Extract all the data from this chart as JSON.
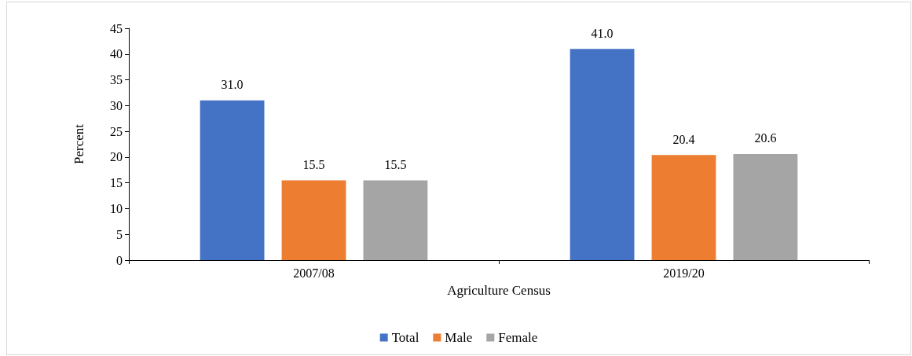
{
  "chart_data": {
    "type": "bar",
    "xlabel": "Agriculture Census",
    "ylabel": "Percent",
    "categories": [
      "2007/08",
      "2019/20"
    ],
    "series": [
      {
        "name": "Total",
        "color": "#4472c4",
        "values": [
          31.0,
          41.0
        ],
        "value_labels": [
          "31.0",
          "41.0"
        ]
      },
      {
        "name": "Male",
        "color": "#ed7d31",
        "values": [
          15.5,
          20.4
        ],
        "value_labels": [
          "15.5",
          "20.4"
        ]
      },
      {
        "name": "Female",
        "color": "#a5a5a5",
        "values": [
          15.5,
          20.6
        ],
        "value_labels": [
          "15.5",
          "20.6"
        ]
      }
    ],
    "ylim": [
      0,
      45
    ],
    "yticks": [
      0,
      5,
      10,
      15,
      20,
      25,
      30,
      35,
      40,
      45
    ],
    "grid": false,
    "legend": "bottom"
  }
}
